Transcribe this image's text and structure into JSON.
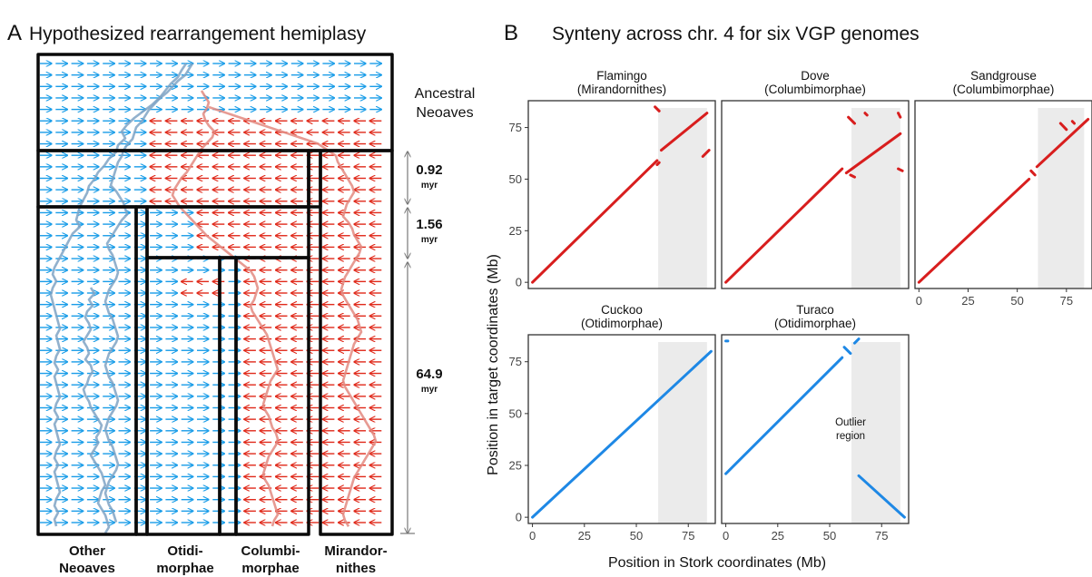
{
  "panel_a": {
    "letter": "A",
    "title": "Hypothesized rearrangement hemiplasy",
    "ancestral_label_line1": "Ancestral",
    "ancestral_label_line2": "Neoaves",
    "time_intervals": [
      {
        "value": "0.92",
        "unit": "myr"
      },
      {
        "value": "1.56",
        "unit": "myr"
      },
      {
        "value": "64.9",
        "unit": "myr"
      }
    ],
    "clades": [
      {
        "line1": "Other",
        "line2": "Neoaves"
      },
      {
        "line1": "Otidi-",
        "line2": "morphae"
      },
      {
        "line1": "Columbi-",
        "line2": "morphae"
      },
      {
        "line1": "Mirandor-",
        "line2": "nithes"
      }
    ],
    "colors": {
      "blue_arrow": "#1a9de8",
      "red_arrow": "#e02a1b",
      "blue_trace": "#7fa3c4",
      "red_trace": "#e38a80"
    }
  },
  "panel_b": {
    "letter": "B",
    "title": "Synteny across chr. 4 for six VGP genomes",
    "xlabel": "Position in Stork coordinates (Mb)",
    "ylabel": "Position in target coordinates (Mb)",
    "annotation_line1": "Outlier",
    "annotation_line2": "region",
    "colors": {
      "red": "#d81e1e",
      "blue": "#1e88e5",
      "shade": "#ebebeb"
    }
  },
  "chart_data": [
    {
      "type": "scatter",
      "title": "Flamingo (Mirandornithes)",
      "name_line1": "Flamingo",
      "name_line2": "(Mirandornithes)",
      "color": "red",
      "xlim": [
        -2,
        88
      ],
      "ylim": [
        -3,
        88
      ],
      "xticks": [
        0,
        25,
        50,
        75
      ],
      "yticks": [
        0,
        25,
        50,
        75
      ],
      "show_xticks": false,
      "show_yticks": true,
      "shaded_region": [
        60.5,
        84
      ],
      "segments": [
        [
          [
            0,
            0
          ],
          [
            60,
            59
          ]
        ],
        [
          [
            60,
            57
          ],
          [
            61,
            58
          ]
        ],
        [
          [
            62,
            64
          ],
          [
            84,
            82
          ]
        ],
        [
          [
            59,
            85
          ],
          [
            61,
            83
          ]
        ],
        [
          [
            82,
            61
          ],
          [
            85,
            64
          ]
        ]
      ]
    },
    {
      "type": "scatter",
      "title": "Dove (Columbimorphae)",
      "name_line1": "Dove",
      "name_line2": "(Columbimorphae)",
      "color": "red",
      "xlim": [
        -2,
        88
      ],
      "ylim": [
        -3,
        88
      ],
      "xticks": [
        0,
        25,
        50,
        75
      ],
      "yticks": [
        0,
        25,
        50,
        75
      ],
      "show_xticks": false,
      "show_yticks": false,
      "shaded_region": [
        60.5,
        84
      ],
      "segments": [
        [
          [
            0,
            0
          ],
          [
            56,
            55
          ]
        ],
        [
          [
            58,
            53
          ],
          [
            84,
            72
          ]
        ],
        [
          [
            59,
            80
          ],
          [
            62,
            77
          ]
        ],
        [
          [
            67,
            82
          ],
          [
            68,
            81
          ]
        ],
        [
          [
            83,
            82
          ],
          [
            84,
            80
          ]
        ],
        [
          [
            60,
            52
          ],
          [
            62,
            51
          ]
        ],
        [
          [
            83,
            55
          ],
          [
            85,
            54
          ]
        ]
      ]
    },
    {
      "type": "scatter",
      "title": "Sandgrouse (Columbimorphae)",
      "name_line1": "Sandgrouse",
      "name_line2": "(Columbimorphae)",
      "color": "red",
      "xlim": [
        -2,
        88
      ],
      "ylim": [
        -3,
        88
      ],
      "xticks": [
        0,
        25,
        50,
        75
      ],
      "yticks": [
        0,
        25,
        50,
        75
      ],
      "show_xticks": true,
      "show_yticks": false,
      "shaded_region": [
        60.5,
        84
      ],
      "segments": [
        [
          [
            0,
            0
          ],
          [
            56,
            50
          ]
        ],
        [
          [
            57,
            54
          ],
          [
            59,
            52
          ]
        ],
        [
          [
            60,
            56
          ],
          [
            86,
            79
          ]
        ],
        [
          [
            72,
            77
          ],
          [
            75,
            74
          ]
        ],
        [
          [
            78,
            78
          ],
          [
            79,
            77
          ]
        ]
      ]
    },
    {
      "type": "scatter",
      "title": "Cuckoo (Otidimorphae)",
      "name_line1": "Cuckoo",
      "name_line2": "(Otidimorphae)",
      "color": "blue",
      "xlim": [
        -2,
        88
      ],
      "ylim": [
        -3,
        88
      ],
      "xticks": [
        0,
        25,
        50,
        75
      ],
      "yticks": [
        0,
        25,
        50,
        75
      ],
      "show_xticks": true,
      "show_yticks": true,
      "shaded_region": [
        60.5,
        84
      ],
      "segments": [
        [
          [
            0,
            0
          ],
          [
            86,
            80
          ]
        ]
      ]
    },
    {
      "type": "scatter",
      "title": "Turaco (Otidimorphae)",
      "name_line1": "Turaco",
      "name_line2": "(Otidimorphae)",
      "color": "blue",
      "xlim": [
        -2,
        88
      ],
      "ylim": [
        -3,
        88
      ],
      "xticks": [
        0,
        25,
        50,
        75
      ],
      "yticks": [
        0,
        25,
        50,
        75
      ],
      "show_xticks": true,
      "show_yticks": false,
      "shaded_region": [
        60.5,
        84
      ],
      "segments": [
        [
          [
            0,
            21
          ],
          [
            56,
            77
          ]
        ],
        [
          [
            57,
            82
          ],
          [
            60,
            79
          ]
        ],
        [
          [
            62,
            84
          ],
          [
            64,
            86
          ]
        ],
        [
          [
            64,
            20
          ],
          [
            86,
            0
          ]
        ],
        [
          [
            0,
            85
          ],
          [
            1,
            85
          ]
        ]
      ]
    }
  ]
}
